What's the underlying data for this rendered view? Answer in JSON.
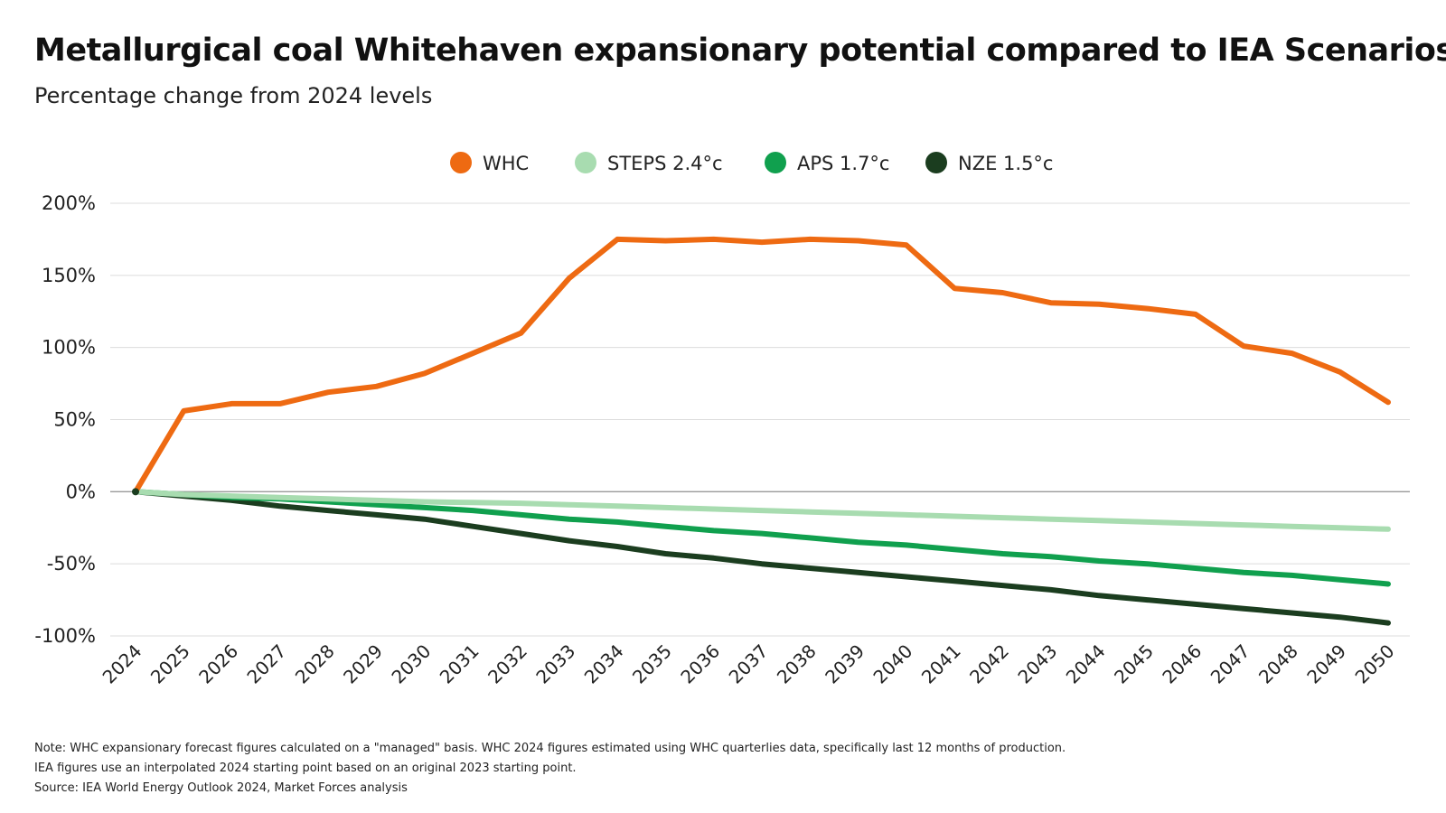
{
  "title": "Metallurgical coal Whitehaven expansionary potential compared to IEA Scenarios",
  "subtitle": "Percentage change from 2024 levels",
  "notes": [
    "Note: WHC expansionary forecast figures calculated on a \"managed\" basis. WHC 2024 figures estimated using WHC quarterlies data, specifically last 12 months of production.",
    "IEA figures use an interpolated 2024 starting point based on an original 2023 starting point.",
    "Source: IEA World Energy Outlook 2024, Market Forces analysis"
  ],
  "chart_data": {
    "type": "line",
    "x": [
      "2024",
      "2025",
      "2026",
      "2027",
      "2028",
      "2029",
      "2030",
      "2031",
      "2032",
      "2033",
      "2034",
      "2035",
      "2036",
      "2037",
      "2038",
      "2039",
      "2040",
      "2041",
      "2042",
      "2043",
      "2044",
      "2045",
      "2046",
      "2047",
      "2048",
      "2049",
      "2050"
    ],
    "yticks": [
      "200%",
      "150%",
      "100%",
      "50%",
      "0%",
      "-50%",
      "-100%"
    ],
    "ylim": [
      -100,
      200
    ],
    "grid": true,
    "legend_position": "top-center",
    "series": [
      {
        "name": "WHC",
        "color": "#ee6a12",
        "values": [
          0,
          56,
          61,
          61,
          69,
          73,
          82,
          96,
          110,
          148,
          175,
          174,
          175,
          173,
          175,
          174,
          171,
          141,
          138,
          131,
          130,
          127,
          123,
          101,
          96,
          83,
          62
        ]
      },
      {
        "name": "STEPS 2.4°c",
        "color": "#a8dcb0",
        "values": [
          0,
          -2,
          -3,
          -4,
          -5,
          -6,
          -7,
          -7.5,
          -8,
          -9,
          -10,
          -11,
          -12,
          -13,
          -14,
          -15,
          -16,
          -17,
          -18,
          -19,
          -20,
          -21,
          -22,
          -23,
          -24,
          -25,
          -26
        ]
      },
      {
        "name": "APS 1.7°c",
        "color": "#10a04e",
        "values": [
          0,
          -2,
          -4,
          -5,
          -7,
          -9,
          -11,
          -13,
          -16,
          -19,
          -21,
          -24,
          -27,
          -29,
          -32,
          -35,
          -37,
          -40,
          -43,
          -45,
          -48,
          -50,
          -53,
          -56,
          -58,
          -61,
          -64
        ]
      },
      {
        "name": "NZE 1.5°c",
        "color": "#1b3d1f",
        "values": [
          0,
          -3,
          -6,
          -10,
          -13,
          -16,
          -19,
          -24,
          -29,
          -34,
          -38,
          -43,
          -46,
          -50,
          -53,
          -56,
          -59,
          -62,
          -65,
          -68,
          -72,
          -75,
          -78,
          -81,
          -84,
          -87,
          -91
        ]
      }
    ]
  }
}
